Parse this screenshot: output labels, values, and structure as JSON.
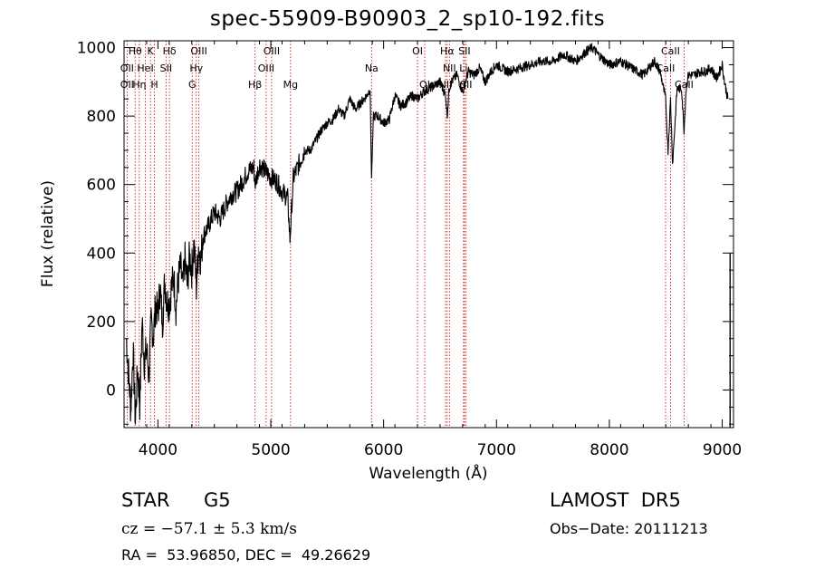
{
  "title": "spec-55909-B90903_2_sp10-192.fits",
  "info": {
    "obj_class": "STAR",
    "obj_subclass": "G5",
    "survey": "LAMOST  DR5",
    "cz": "cz = −57.1 ± 5.3 km/s",
    "obs_date": "Obs−Date: 20111213",
    "radec": "RA =  53.96850, DEC =  49.26629"
  },
  "chart_data": {
    "type": "line",
    "title": "spec-55909-B90903_2_sp10-192.fits",
    "xlabel": "Wavelength (Å)",
    "ylabel": "Flux (relative)",
    "xlim": [
      3700,
      9100
    ],
    "ylim": [
      -110,
      1020
    ],
    "xticks": [
      4000,
      5000,
      6000,
      7000,
      8000,
      9000
    ],
    "yticks": [
      0,
      200,
      400,
      600,
      800,
      1000
    ],
    "grid": false,
    "line_color": "#000000",
    "marker_color": "#cc0000",
    "spectrum": {
      "name": "",
      "x": [
        3720,
        3740,
        3760,
        3780,
        3800,
        3820,
        3840,
        3860,
        3880,
        3900,
        3920,
        3940,
        3960,
        3980,
        4000,
        4020,
        4040,
        4060,
        4080,
        4100,
        4120,
        4140,
        4160,
        4180,
        4200,
        4220,
        4240,
        4260,
        4280,
        4300,
        4320,
        4340,
        4360,
        4380,
        4400,
        4450,
        4500,
        4550,
        4600,
        4650,
        4700,
        4750,
        4800,
        4850,
        4860,
        4900,
        4950,
        5000,
        5050,
        5100,
        5150,
        5170,
        5200,
        5250,
        5300,
        5350,
        5400,
        5450,
        5500,
        5550,
        5600,
        5650,
        5700,
        5750,
        5800,
        5850,
        5880,
        5893,
        5910,
        5950,
        6000,
        6050,
        6100,
        6150,
        6200,
        6250,
        6300,
        6350,
        6400,
        6450,
        6500,
        6550,
        6563,
        6580,
        6600,
        6650,
        6700,
        6750,
        6800,
        6850,
        6900,
        6950,
        7000,
        7100,
        7200,
        7300,
        7400,
        7500,
        7600,
        7700,
        7800,
        7850,
        7900,
        8000,
        8100,
        8200,
        8300,
        8400,
        8450,
        8498,
        8520,
        8542,
        8560,
        8600,
        8640,
        8662,
        8680,
        8700,
        8750,
        8800,
        8850,
        8900,
        8950,
        9000,
        9020,
        9050
      ],
      "y": [
        150,
        50,
        -60,
        120,
        -90,
        60,
        -40,
        200,
        80,
        120,
        40,
        200,
        160,
        250,
        220,
        300,
        190,
        320,
        260,
        250,
        300,
        330,
        240,
        320,
        360,
        300,
        380,
        310,
        390,
        350,
        430,
        300,
        420,
        380,
        450,
        480,
        520,
        500,
        540,
        570,
        580,
        610,
        640,
        650,
        600,
        660,
        640,
        620,
        610,
        580,
        560,
        440,
        620,
        660,
        700,
        700,
        730,
        760,
        780,
        790,
        820,
        800,
        850,
        820,
        840,
        860,
        880,
        620,
        800,
        800,
        780,
        790,
        860,
        830,
        840,
        860,
        850,
        870,
        880,
        890,
        900,
        860,
        800,
        880,
        900,
        920,
        870,
        930,
        920,
        940,
        900,
        930,
        950,
        930,
        940,
        950,
        960,
        960,
        980,
        960,
        990,
        1000,
        980,
        950,
        960,
        940,
        920,
        960,
        930,
        850,
        700,
        850,
        660,
        880,
        880,
        760,
        880,
        920,
        920,
        930,
        930,
        940,
        910,
        950,
        900,
        850
      ],
      "extra_drop": {
        "x": 9070,
        "y_range": [
          400,
          -110
        ]
      }
    },
    "lines": [
      {
        "label": "Hθ",
        "x": 3798,
        "row": 0
      },
      {
        "label": "K",
        "x": 3934,
        "row": 0
      },
      {
        "label": "Hδ",
        "x": 4102,
        "row": 0
      },
      {
        "label": "OIII",
        "x": 4363,
        "row": 0
      },
      {
        "label": "OIII",
        "x": 5007,
        "row": 0
      },
      {
        "label": "OI",
        "x": 6300,
        "row": 0
      },
      {
        "label": "Hα",
        "x": 6563,
        "row": 0
      },
      {
        "label": "SII",
        "x": 6716,
        "row": 0
      },
      {
        "label": "CaII",
        "x": 8542,
        "row": 0
      },
      {
        "label": "OII",
        "x": 3727,
        "row": 1
      },
      {
        "label": "HeI",
        "x": 3889,
        "row": 1
      },
      {
        "label": "SII",
        "x": 4072,
        "row": 1
      },
      {
        "label": "Hγ",
        "x": 4340,
        "row": 1
      },
      {
        "label": "OIII",
        "x": 4959,
        "row": 1
      },
      {
        "label": "Na",
        "x": 5893,
        "row": 1
      },
      {
        "label": "NII",
        "x": 6583,
        "row": 1
      },
      {
        "label": "Li",
        "x": 6708,
        "row": 1
      },
      {
        "label": "CaII",
        "x": 8498,
        "row": 1
      },
      {
        "label": "OII",
        "x": 3727,
        "row": 2
      },
      {
        "label": "Hη",
        "x": 3835,
        "row": 2
      },
      {
        "label": "H",
        "x": 3969,
        "row": 2
      },
      {
        "label": "G",
        "x": 4304,
        "row": 2
      },
      {
        "label": "Hβ",
        "x": 4861,
        "row": 2
      },
      {
        "label": "Mg",
        "x": 5175,
        "row": 2
      },
      {
        "label": "OI",
        "x": 6364,
        "row": 2
      },
      {
        "label": "NII",
        "x": 6548,
        "row": 2
      },
      {
        "label": "SII",
        "x": 6731,
        "row": 2
      },
      {
        "label": "CaII",
        "x": 8662,
        "row": 2
      }
    ]
  }
}
